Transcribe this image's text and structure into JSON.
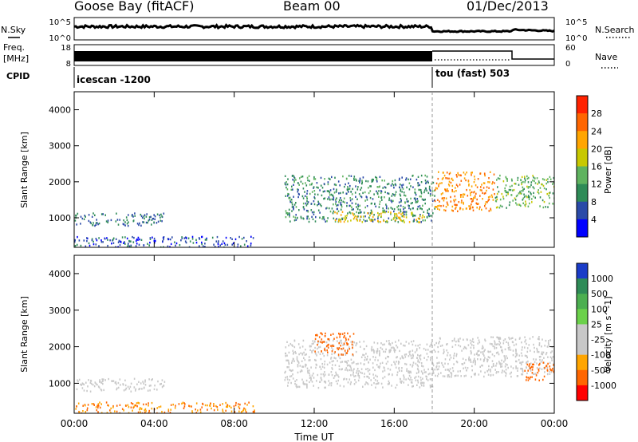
{
  "header": {
    "station": "Goose Bay (fitACF)",
    "beam": "Beam 00",
    "date": "01/Dec/2013"
  },
  "status_panels": {
    "nsky_label": "N.Sky",
    "nsearch_label": "N.Search",
    "freq_label_1": "Freq.",
    "freq_label_2": "[MHz]",
    "nave_label": "Nave",
    "cpid_label": "CPID",
    "noise_ticks": [
      "10^5",
      "10^0"
    ],
    "noise_right_ticks": [
      "10^5",
      "10^0"
    ],
    "freq_ticks": [
      "18",
      "8"
    ],
    "nave_ticks": [
      "60",
      "0"
    ],
    "cpid_segments": [
      {
        "label": "icescan -1200",
        "start_hour": 0
      },
      {
        "label": "tou (fast) 503",
        "start_hour": 18
      }
    ]
  },
  "colors": {
    "power_scale": [
      "#0000ff",
      "#2a4aa8",
      "#2e8b57",
      "#5fb35f",
      "#c8c800",
      "#ffa500",
      "#ff6600",
      "#ff2200"
    ],
    "velocity_scale": [
      "#1a3cc8",
      "#2e8b57",
      "#4caf50",
      "#6bd14a",
      "#c8c8c8",
      "#c8c8c8",
      "#ffa500",
      "#ff6600",
      "#ff0000"
    ]
  },
  "chart_data": [
    {
      "type": "heatmap",
      "title": "Power",
      "xlabel": "",
      "ylabel": "Slant Range [km]",
      "ylim": [
        180,
        4500
      ],
      "xlim_hours": [
        0,
        24
      ],
      "y_ticks": [
        "1000",
        "2000",
        "3000",
        "4000"
      ],
      "x_ticks": [
        "00:00",
        "04:00",
        "08:00",
        "12:00",
        "16:00",
        "20:00",
        "00:00"
      ],
      "colorbar": {
        "label": "Power [dB]",
        "ticks": [
          "4",
          "8",
          "12",
          "16",
          "20",
          "24",
          "28"
        ],
        "range": [
          0,
          30
        ]
      },
      "regions": [
        {
          "t0": 0.0,
          "t1": 9.0,
          "r0": 200,
          "r1": 500,
          "value": 6
        },
        {
          "t0": 0.0,
          "t1": 4.5,
          "r0": 800,
          "r1": 1150,
          "value": 8
        },
        {
          "t0": 10.5,
          "t1": 18.0,
          "r0": 900,
          "r1": 2200,
          "value": 10
        },
        {
          "t0": 13.0,
          "t1": 17.5,
          "r0": 900,
          "r1": 1200,
          "value": 20
        },
        {
          "t0": 18.0,
          "t1": 21.0,
          "r0": 1200,
          "r1": 2300,
          "value": 24
        },
        {
          "t0": 21.0,
          "t1": 24.0,
          "r0": 1300,
          "r1": 2200,
          "value": 14
        }
      ]
    },
    {
      "type": "heatmap",
      "title": "Velocity",
      "xlabel": "Time UT",
      "ylabel": "Slant Range [km]",
      "ylim": [
        180,
        4500
      ],
      "xlim_hours": [
        0,
        24
      ],
      "y_ticks": [
        "1000",
        "2000",
        "3000",
        "4000"
      ],
      "x_ticks": [
        "00:00",
        "04:00",
        "08:00",
        "12:00",
        "16:00",
        "20:00",
        "00:00"
      ],
      "colorbar": {
        "label": "Velocity [m s^-1]",
        "ticks": [
          "1000",
          "500",
          "100",
          "25",
          "-25",
          "-100",
          "-500",
          "-1000"
        ]
      },
      "regions": [
        {
          "t0": 0.0,
          "t1": 9.0,
          "r0": 200,
          "r1": 500,
          "value": -100
        },
        {
          "t0": 0.0,
          "t1": 4.5,
          "r0": 800,
          "r1": 1150,
          "value": 0
        },
        {
          "t0": 10.5,
          "t1": 18.0,
          "r0": 900,
          "r1": 2200,
          "value": 0
        },
        {
          "t0": 12.0,
          "t1": 14.0,
          "r0": 1800,
          "r1": 2400,
          "value": -300
        },
        {
          "t0": 18.0,
          "t1": 24.0,
          "r0": 1200,
          "r1": 2300,
          "value": 0
        },
        {
          "t0": 22.5,
          "t1": 24.0,
          "r0": 1100,
          "r1": 1600,
          "value": -300
        }
      ]
    }
  ]
}
